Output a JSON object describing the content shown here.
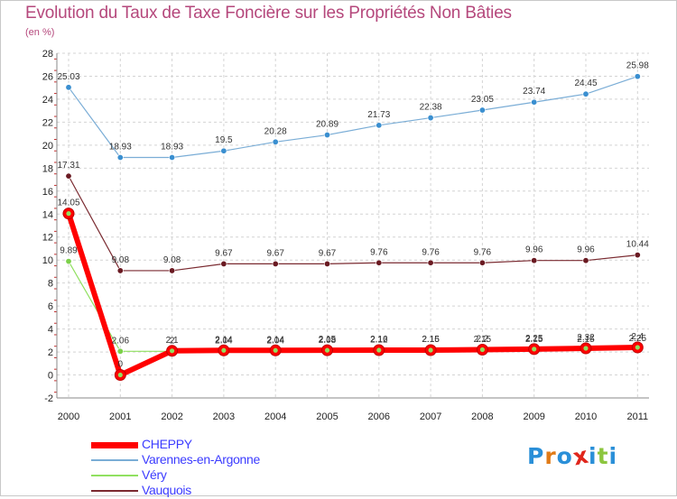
{
  "title": "Evolution du Taux de Taxe Foncière sur les Propriétés Non Bâties",
  "subtitle": "(en %)",
  "logo": {
    "text": "Proxiti",
    "letter_colors": [
      "#2a8fd8",
      "#e07b18",
      "#2a8fd8",
      "#e0261c",
      "#2a8fd8",
      "#8cc63f",
      "#2a8fd8"
    ]
  },
  "chart_data": {
    "type": "line",
    "title": "Evolution du Taux de Taxe Foncière sur les Propriétés Non Bâties",
    "ylabel": "(en %)",
    "xlabel": "",
    "x": [
      "2000",
      "2001",
      "2002",
      "2003",
      "2004",
      "2005",
      "2006",
      "2007",
      "2008",
      "2009",
      "2010",
      "2011"
    ],
    "ylim": [
      -2,
      28
    ],
    "yticks": [
      -2,
      0,
      2,
      4,
      6,
      8,
      10,
      12,
      14,
      16,
      18,
      20,
      22,
      24,
      26,
      28
    ],
    "grid": true,
    "legend": "bottom-left",
    "series": [
      {
        "name": "CHEPPY",
        "color": "#ff0000",
        "values": [
          14.05,
          0,
          2.1,
          2.14,
          2.14,
          2.15,
          2.16,
          2.16,
          2.2,
          2.25,
          2.32,
          2.4
        ],
        "labels": [
          "14.05",
          "0",
          "2.1",
          "2.14",
          "2.14",
          "2.15",
          "2.16",
          "2.16",
          "2.2",
          "2.25",
          "2.32",
          "2.4"
        ]
      },
      {
        "name": "Varennes-en-Argonne",
        "color": "#7aadd6",
        "values": [
          25.03,
          18.93,
          18.93,
          19.5,
          20.28,
          20.89,
          21.73,
          22.38,
          23.05,
          23.74,
          24.45,
          25.98
        ],
        "labels": [
          "25.03",
          "18.93",
          "18.93",
          "19.5",
          "20.28",
          "20.89",
          "21.73",
          "22.38",
          "23.05",
          "23.74",
          "24.45",
          "25.98"
        ]
      },
      {
        "name": "Véry",
        "color": "#90e060",
        "values": [
          9.89,
          2.06,
          2.06,
          2.04,
          2.04,
          2.08,
          2.12,
          2.15,
          2.15,
          2.15,
          2.15,
          2.25
        ],
        "labels": [
          "9.89",
          "2.06",
          "2",
          "2.04",
          "2.04",
          "2.08",
          "2.12",
          "2.15",
          "2.15",
          "2.15",
          "2.15",
          "2.25"
        ]
      },
      {
        "name": "Vauquois",
        "color": "#7a2a30",
        "values": [
          17.31,
          9.08,
          9.08,
          9.67,
          9.67,
          9.67,
          9.76,
          9.76,
          9.76,
          9.96,
          9.96,
          10.44
        ],
        "labels": [
          "17.31",
          "9.08",
          "9.08",
          "9.67",
          "9.67",
          "9.67",
          "9.76",
          "9.76",
          "9.76",
          "9.96",
          "9.96",
          "10.44"
        ]
      }
    ]
  }
}
